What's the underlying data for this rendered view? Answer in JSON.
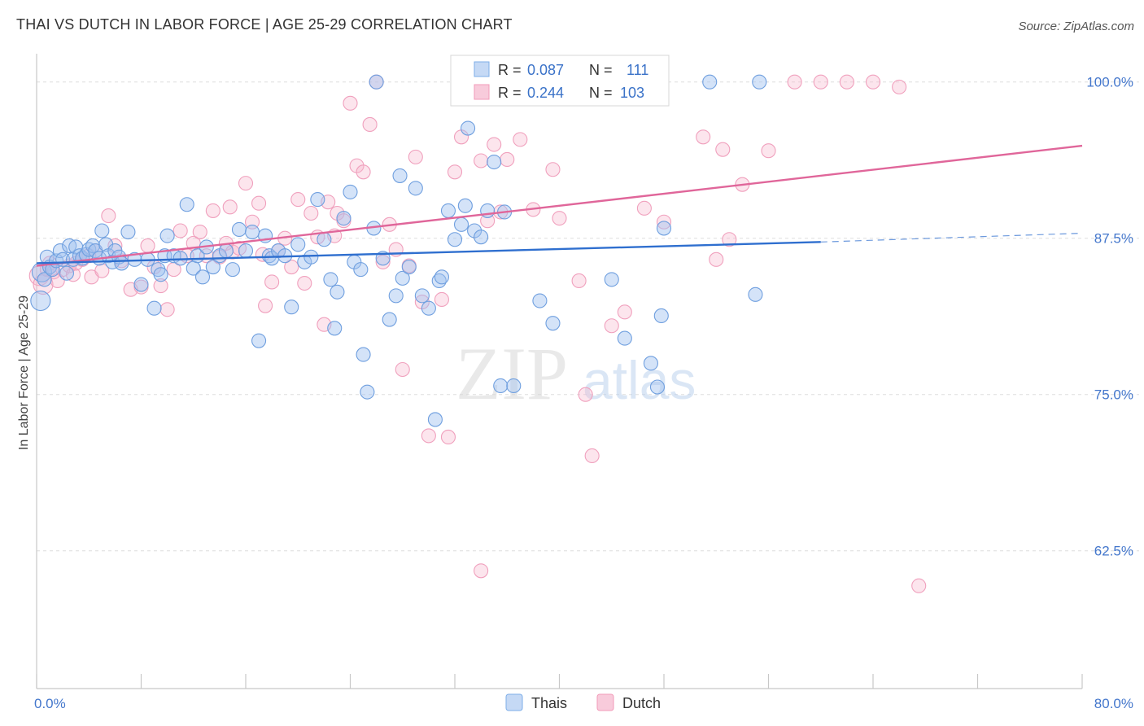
{
  "header": {
    "title": "THAI VS DUTCH IN LABOR FORCE | AGE 25-29 CORRELATION CHART",
    "source": "Source: ZipAtlas.com"
  },
  "watermark": {
    "zip": "ZIP",
    "atlas": "atlas"
  },
  "legend_box": {
    "rows": [
      {
        "r_label": "R =",
        "r_value": "0.087",
        "n_label": "N =",
        "n_value": "111",
        "color": "#7eaee8",
        "fill": "#c5d9f5"
      },
      {
        "r_label": "R =",
        "r_value": "0.244",
        "n_label": "N =",
        "n_value": "103",
        "color": "#f29bb8",
        "fill": "#f8cbdb"
      }
    ]
  },
  "bottom_legend": [
    {
      "label": "Thais",
      "fill": "#c5d9f5",
      "stroke": "#7eaee8"
    },
    {
      "label": "Dutch",
      "fill": "#f8cbdb",
      "stroke": "#f29bb8"
    }
  ],
  "chart_data": {
    "type": "scatter",
    "title": "THAI VS DUTCH IN LABOR FORCE | AGE 25-29 CORRELATION CHART",
    "xlabel": "",
    "ylabel": "In Labor Force | Age 25-29",
    "xlim": [
      0,
      80
    ],
    "ylim": [
      52,
      102
    ],
    "x_tick_labels": [
      "0.0%",
      "80.0%"
    ],
    "y_ticks": [
      62.5,
      75.0,
      87.5,
      100.0
    ],
    "y_tick_labels": [
      "62.5%",
      "75.0%",
      "87.5%",
      "100.0%"
    ],
    "grid": true,
    "legend_position": "top-center",
    "colors": {
      "thais": "#5b8fd6",
      "dutch": "#ef7da3",
      "thais_line": "#2f6fcf",
      "dutch_line": "#e0669a",
      "tick_label": "#4477cc"
    },
    "series": [
      {
        "name": "Thais",
        "trend": {
          "x0": 0,
          "y0": 85.5,
          "x1": 60,
          "y1": 87.2,
          "dash_to_x": 80,
          "dash_to_y": 87.9
        },
        "points": [
          [
            0.3,
            82.5
          ],
          [
            0.4,
            84.8
          ],
          [
            0.6,
            84.2
          ],
          [
            0.8,
            86.0
          ],
          [
            1.0,
            85.2
          ],
          [
            1.2,
            85.0
          ],
          [
            1.5,
            85.7
          ],
          [
            1.8,
            86.5
          ],
          [
            2.0,
            85.8
          ],
          [
            2.3,
            84.7
          ],
          [
            2.5,
            86.9
          ],
          [
            2.8,
            85.8
          ],
          [
            3.0,
            86.8
          ],
          [
            3.3,
            86.1
          ],
          [
            3.5,
            85.9
          ],
          [
            3.8,
            86.2
          ],
          [
            4.0,
            86.6
          ],
          [
            4.3,
            86.9
          ],
          [
            4.5,
            86.5
          ],
          [
            4.8,
            85.9
          ],
          [
            5.0,
            88.1
          ],
          [
            5.3,
            87.0
          ],
          [
            5.5,
            86.1
          ],
          [
            5.8,
            85.6
          ],
          [
            6.0,
            86.5
          ],
          [
            6.3,
            86.0
          ],
          [
            6.5,
            85.5
          ],
          [
            7.0,
            88.0
          ],
          [
            7.5,
            85.8
          ],
          [
            8.0,
            83.8
          ],
          [
            8.5,
            85.8
          ],
          [
            9.0,
            81.9
          ],
          [
            9.3,
            85.0
          ],
          [
            9.5,
            84.6
          ],
          [
            9.8,
            86.1
          ],
          [
            10.0,
            87.7
          ],
          [
            10.5,
            86.1
          ],
          [
            11.0,
            85.9
          ],
          [
            11.5,
            90.2
          ],
          [
            12.0,
            85.1
          ],
          [
            12.3,
            86.1
          ],
          [
            12.7,
            84.4
          ],
          [
            13.0,
            86.8
          ],
          [
            13.5,
            85.2
          ],
          [
            14.0,
            86.1
          ],
          [
            14.5,
            86.5
          ],
          [
            15.0,
            85.0
          ],
          [
            15.5,
            88.2
          ],
          [
            16.0,
            86.5
          ],
          [
            16.5,
            88.0
          ],
          [
            17.0,
            79.3
          ],
          [
            17.5,
            87.7
          ],
          [
            17.8,
            86.1
          ],
          [
            18.0,
            85.9
          ],
          [
            18.5,
            86.5
          ],
          [
            19.0,
            86.1
          ],
          [
            19.5,
            82.0
          ],
          [
            20.0,
            87.0
          ],
          [
            20.5,
            85.6
          ],
          [
            21.0,
            86.0
          ],
          [
            21.5,
            90.6
          ],
          [
            22.0,
            87.4
          ],
          [
            22.5,
            84.2
          ],
          [
            22.8,
            80.3
          ],
          [
            23.0,
            83.2
          ],
          [
            23.5,
            89.1
          ],
          [
            24.0,
            91.2
          ],
          [
            24.3,
            85.6
          ],
          [
            24.8,
            85.0
          ],
          [
            25.0,
            78.2
          ],
          [
            25.3,
            75.2
          ],
          [
            25.8,
            88.3
          ],
          [
            26.0,
            100.0
          ],
          [
            26.5,
            85.9
          ],
          [
            27.0,
            81.0
          ],
          [
            27.5,
            82.9
          ],
          [
            27.8,
            92.5
          ],
          [
            28.0,
            84.3
          ],
          [
            28.5,
            85.2
          ],
          [
            29.0,
            91.5
          ],
          [
            29.5,
            82.9
          ],
          [
            30.0,
            81.9
          ],
          [
            30.5,
            73.0
          ],
          [
            30.8,
            84.1
          ],
          [
            31.0,
            84.4
          ],
          [
            31.5,
            89.7
          ],
          [
            32.0,
            87.4
          ],
          [
            32.5,
            88.6
          ],
          [
            32.8,
            90.1
          ],
          [
            33.0,
            96.3
          ],
          [
            33.5,
            88.1
          ],
          [
            34.0,
            87.6
          ],
          [
            34.5,
            89.7
          ],
          [
            35.0,
            93.6
          ],
          [
            35.5,
            75.7
          ],
          [
            35.8,
            89.6
          ],
          [
            36.5,
            75.7
          ],
          [
            38.5,
            82.5
          ],
          [
            39.5,
            80.7
          ],
          [
            44.0,
            84.2
          ],
          [
            45.0,
            79.5
          ],
          [
            47.0,
            77.5
          ],
          [
            47.5,
            75.6
          ],
          [
            47.8,
            81.3
          ],
          [
            48.0,
            88.3
          ],
          [
            51.5,
            100.0
          ],
          [
            55.0,
            83.0
          ],
          [
            55.3,
            100.0
          ]
        ]
      },
      {
        "name": "Dutch",
        "trend": {
          "x0": 0,
          "y0": 85.3,
          "x1": 80,
          "y1": 94.9
        },
        "points": [
          [
            0.2,
            84.5
          ],
          [
            0.5,
            83.8
          ],
          [
            0.8,
            85.0
          ],
          [
            1.0,
            85.5
          ],
          [
            1.3,
            84.8
          ],
          [
            1.6,
            84.1
          ],
          [
            2.0,
            85.0
          ],
          [
            2.5,
            85.3
          ],
          [
            2.8,
            84.6
          ],
          [
            3.0,
            85.5
          ],
          [
            3.5,
            85.8
          ],
          [
            4.0,
            86.1
          ],
          [
            4.2,
            84.4
          ],
          [
            4.5,
            86.5
          ],
          [
            5.0,
            84.9
          ],
          [
            5.5,
            89.3
          ],
          [
            6.0,
            86.9
          ],
          [
            6.5,
            85.7
          ],
          [
            7.2,
            83.4
          ],
          [
            8.0,
            83.6
          ],
          [
            8.5,
            86.9
          ],
          [
            9.0,
            85.2
          ],
          [
            9.5,
            83.7
          ],
          [
            10.0,
            81.8
          ],
          [
            10.5,
            85.0
          ],
          [
            11.0,
            88.1
          ],
          [
            11.5,
            86.1
          ],
          [
            12.0,
            87.1
          ],
          [
            12.5,
            88.0
          ],
          [
            13.0,
            86.1
          ],
          [
            13.5,
            89.7
          ],
          [
            14.0,
            86.0
          ],
          [
            14.5,
            87.1
          ],
          [
            14.8,
            90.0
          ],
          [
            15.0,
            86.4
          ],
          [
            15.5,
            86.7
          ],
          [
            16.0,
            91.9
          ],
          [
            16.5,
            88.8
          ],
          [
            17.0,
            90.3
          ],
          [
            17.3,
            86.2
          ],
          [
            17.5,
            82.1
          ],
          [
            18.0,
            84.0
          ],
          [
            18.5,
            86.5
          ],
          [
            19.0,
            87.5
          ],
          [
            19.5,
            85.2
          ],
          [
            20.0,
            90.6
          ],
          [
            20.5,
            83.9
          ],
          [
            21.0,
            89.5
          ],
          [
            21.5,
            87.6
          ],
          [
            22.0,
            80.6
          ],
          [
            22.3,
            90.4
          ],
          [
            22.8,
            87.7
          ],
          [
            23.0,
            89.5
          ],
          [
            23.5,
            88.9
          ],
          [
            24.0,
            98.3
          ],
          [
            24.5,
            93.3
          ],
          [
            25.0,
            92.8
          ],
          [
            25.5,
            96.6
          ],
          [
            26.0,
            100.0
          ],
          [
            26.5,
            85.6
          ],
          [
            27.0,
            88.6
          ],
          [
            27.5,
            86.6
          ],
          [
            28.0,
            77.0
          ],
          [
            28.5,
            85.3
          ],
          [
            29.0,
            94.0
          ],
          [
            29.5,
            82.4
          ],
          [
            30.0,
            71.7
          ],
          [
            31.0,
            82.6
          ],
          [
            31.5,
            71.6
          ],
          [
            32.0,
            92.8
          ],
          [
            32.5,
            95.6
          ],
          [
            33.0,
            100.0
          ],
          [
            34.0,
            93.7
          ],
          [
            34.5,
            88.9
          ],
          [
            35.0,
            95.0
          ],
          [
            35.5,
            89.6
          ],
          [
            36.0,
            93.8
          ],
          [
            37.0,
            95.4
          ],
          [
            38.0,
            89.8
          ],
          [
            39.5,
            93.0
          ],
          [
            40.0,
            89.1
          ],
          [
            41.5,
            84.1
          ],
          [
            42.0,
            75.0
          ],
          [
            42.5,
            70.1
          ],
          [
            44.0,
            80.5
          ],
          [
            45.0,
            81.6
          ],
          [
            46.5,
            89.9
          ],
          [
            48.0,
            88.8
          ],
          [
            51.0,
            95.6
          ],
          [
            52.0,
            85.8
          ],
          [
            52.5,
            94.6
          ],
          [
            53.0,
            87.4
          ],
          [
            54.0,
            91.8
          ],
          [
            56.0,
            94.5
          ],
          [
            58.0,
            100.0
          ],
          [
            60.0,
            100.0
          ],
          [
            62.0,
            100.0
          ],
          [
            64.0,
            100.0
          ],
          [
            66.0,
            99.6
          ],
          [
            67.5,
            59.7
          ],
          [
            34.0,
            60.9
          ]
        ]
      }
    ]
  }
}
